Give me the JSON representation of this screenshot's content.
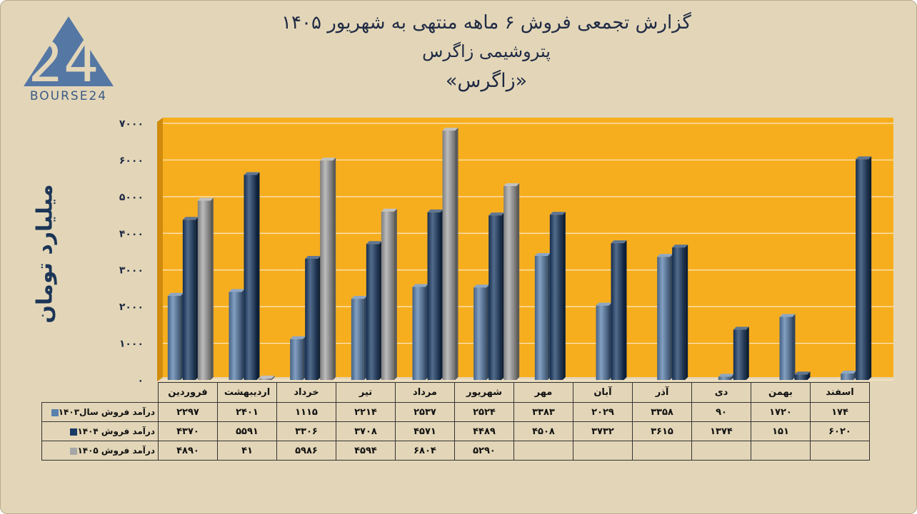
{
  "header": {
    "title_line1": "گزارش تجمعی فروش ۶ ماهه منتهی به شهریور ۱۴۰۵",
    "title_line2": "پتروشیمی زاگرس",
    "title_line3": "«زاگرس»"
  },
  "logo": {
    "text": "BOURSE24",
    "mark": "24"
  },
  "colors": {
    "background": "#e3d6b8",
    "plot_area": "#f7ae1e",
    "s1403": "#5a80ad",
    "s1404": "#1a3b66",
    "s1405": "#a6a6a6"
  },
  "chart_data": {
    "type": "bar",
    "ylabel": "میلیارد تومان",
    "ylim": [
      0,
      7000
    ],
    "yticks": [
      "۰",
      "۱۰۰۰",
      "۲۰۰۰",
      "۳۰۰۰",
      "۴۰۰۰",
      "۵۰۰۰",
      "۶۰۰۰",
      "۷۰۰۰"
    ],
    "ytick_values": [
      0,
      1000,
      2000,
      3000,
      4000,
      5000,
      6000,
      7000
    ],
    "categories": [
      "فروردین",
      "اردیبهشت",
      "خرداد",
      "تیر",
      "مرداد",
      "شهریور",
      "مهر",
      "آبان",
      "آذر",
      "دی",
      "بهمن",
      "اسفند"
    ],
    "grid": true,
    "legend": "in data table",
    "series": [
      {
        "name": "درآمد فروش سال۱۴۰۳",
        "color": "#5a80ad",
        "values": [
          2297,
          2401,
          1115,
          2214,
          2537,
          2524,
          3383,
          2029,
          3358,
          90,
          1720,
          174
        ],
        "labels": [
          "۲۲۹۷",
          "۲۴۰۱",
          "۱۱۱۵",
          "۲۲۱۴",
          "۲۵۳۷",
          "۲۵۲۴",
          "۳۳۸۳",
          "۲۰۲۹",
          "۳۳۵۸",
          "۹۰",
          "۱۷۲۰",
          "۱۷۴"
        ]
      },
      {
        "name": "درآمد فروش ۱۴۰۴",
        "color": "#1a3b66",
        "values": [
          4370,
          5591,
          3306,
          3708,
          4571,
          4489,
          4508,
          3732,
          3615,
          1374,
          151,
          6020
        ],
        "labels": [
          "۴۳۷۰",
          "۵۵۹۱",
          "۳۳۰۶",
          "۳۷۰۸",
          "۴۵۷۱",
          "۴۴۸۹",
          "۴۵۰۸",
          "۳۷۳۲",
          "۳۶۱۵",
          "۱۳۷۴",
          "۱۵۱",
          "۶۰۲۰"
        ]
      },
      {
        "name": "درآمد فروش ۱۴۰۵",
        "color": "#a6a6a6",
        "values": [
          4890,
          41,
          5986,
          4594,
          6804,
          5290,
          null,
          null,
          null,
          null,
          null,
          null
        ],
        "labels": [
          "۴۸۹۰",
          "۴۱",
          "۵۹۸۶",
          "۴۵۹۴",
          "۶۸۰۴",
          "۵۲۹۰",
          "",
          "",
          "",
          "",
          "",
          ""
        ]
      }
    ]
  }
}
